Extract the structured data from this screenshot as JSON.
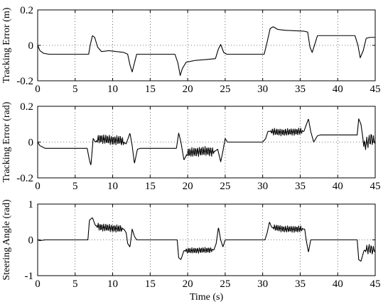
{
  "xlabel": "Time (s)",
  "line_color": "#000000",
  "chart_data": [
    {
      "type": "line",
      "ylabel": "Tracking Error (m)",
      "xlim": [
        0,
        45
      ],
      "ylim": [
        -0.2,
        0.2
      ],
      "xticks": [
        0,
        5,
        10,
        15,
        20,
        25,
        30,
        35,
        40,
        45
      ],
      "yticks": [
        -0.2,
        0,
        0.2
      ],
      "ytick_labels": [
        "-0.2",
        "0",
        "0.2"
      ],
      "grid": true,
      "keypoints": [
        [
          0,
          0
        ],
        [
          0.3,
          -0.03
        ],
        [
          0.8,
          -0.045
        ],
        [
          1.5,
          -0.05
        ],
        [
          6.8,
          -0.05
        ],
        [
          7.0,
          0.0
        ],
        [
          7.3,
          0.055
        ],
        [
          7.6,
          0.045
        ],
        [
          8.0,
          -0.01
        ],
        [
          8.5,
          -0.035
        ],
        [
          9.5,
          -0.03
        ],
        [
          10.5,
          -0.035
        ],
        [
          11.5,
          -0.04
        ],
        [
          12.0,
          -0.05
        ],
        [
          12.3,
          -0.11
        ],
        [
          12.6,
          -0.15
        ],
        [
          12.9,
          -0.1
        ],
        [
          13.2,
          -0.05
        ],
        [
          18.3,
          -0.05
        ],
        [
          18.7,
          -0.1
        ],
        [
          19.0,
          -0.17
        ],
        [
          19.3,
          -0.13
        ],
        [
          19.8,
          -0.095
        ],
        [
          21.0,
          -0.085
        ],
        [
          22.5,
          -0.08
        ],
        [
          23.7,
          -0.075
        ],
        [
          24.1,
          -0.02
        ],
        [
          24.4,
          0.005
        ],
        [
          24.8,
          -0.04
        ],
        [
          25.2,
          -0.05
        ],
        [
          30.2,
          -0.05
        ],
        [
          30.6,
          0.02
        ],
        [
          31.0,
          0.095
        ],
        [
          31.4,
          0.105
        ],
        [
          32.0,
          0.09
        ],
        [
          33.0,
          0.085
        ],
        [
          35.5,
          0.08
        ],
        [
          36.0,
          0.075
        ],
        [
          36.3,
          -0.01
        ],
        [
          36.6,
          -0.04
        ],
        [
          36.9,
          0.0
        ],
        [
          37.3,
          0.055
        ],
        [
          42.3,
          0.055
        ],
        [
          42.7,
          0.0
        ],
        [
          43.0,
          -0.07
        ],
        [
          43.4,
          -0.03
        ],
        [
          43.8,
          0.04
        ],
        [
          44.3,
          0.045
        ],
        [
          45,
          0.045
        ]
      ]
    },
    {
      "type": "line",
      "ylabel": "Tracking Error (rad)",
      "xlim": [
        0,
        45
      ],
      "ylim": [
        -0.2,
        0.2
      ],
      "xticks": [
        0,
        5,
        10,
        15,
        20,
        25,
        30,
        35,
        40,
        45
      ],
      "yticks": [
        -0.2,
        0,
        0.2
      ],
      "ytick_labels": [
        "-0.2",
        "0",
        "0.2"
      ],
      "grid": true,
      "keypoints": [
        [
          0,
          0
        ],
        [
          0.3,
          -0.02
        ],
        [
          1.0,
          -0.035
        ],
        [
          6.6,
          -0.035
        ],
        [
          6.9,
          -0.1
        ],
        [
          7.1,
          -0.13
        ],
        [
          7.4,
          0.02
        ],
        [
          7.7,
          0.0
        ],
        [
          8.2,
          0.02
        ],
        [
          9.0,
          0.015
        ],
        [
          10.0,
          0.01
        ],
        [
          11.0,
          0.01
        ],
        [
          11.8,
          -0.01
        ],
        [
          12.3,
          0.05
        ],
        [
          12.6,
          -0.02
        ],
        [
          12.9,
          -0.12
        ],
        [
          13.3,
          -0.04
        ],
        [
          13.7,
          -0.035
        ],
        [
          18.5,
          -0.035
        ],
        [
          18.8,
          0.05
        ],
        [
          19.1,
          0.0
        ],
        [
          19.5,
          -0.1
        ],
        [
          20.0,
          -0.06
        ],
        [
          21.0,
          -0.055
        ],
        [
          22.5,
          -0.05
        ],
        [
          23.5,
          -0.055
        ],
        [
          24.0,
          -0.04
        ],
        [
          24.4,
          -0.11
        ],
        [
          24.7,
          -0.05
        ],
        [
          25.0,
          0.02
        ],
        [
          25.3,
          0.0
        ],
        [
          30.0,
          0.0
        ],
        [
          30.4,
          0.02
        ],
        [
          30.7,
          0.06
        ],
        [
          31.0,
          0.06
        ],
        [
          32.0,
          0.055
        ],
        [
          33.0,
          0.055
        ],
        [
          35.5,
          0.06
        ],
        [
          36.1,
          0.13
        ],
        [
          36.4,
          0.06
        ],
        [
          36.8,
          0.0
        ],
        [
          37.3,
          0.035
        ],
        [
          37.7,
          0.04
        ],
        [
          42.6,
          0.04
        ],
        [
          42.8,
          0.13
        ],
        [
          43.1,
          0.1
        ],
        [
          43.5,
          -0.02
        ],
        [
          44.0,
          0.0
        ],
        [
          44.5,
          0.02
        ],
        [
          45,
          0.0
        ]
      ],
      "noise": [
        {
          "x0": 7.8,
          "x1": 11.6,
          "amp": 0.02,
          "period": 0.25
        },
        {
          "x0": 19.8,
          "x1": 23.6,
          "amp": 0.02,
          "period": 0.25
        },
        {
          "x0": 31.0,
          "x1": 35.4,
          "amp": 0.015,
          "period": 0.25
        },
        {
          "x0": 43.3,
          "x1": 45.0,
          "amp": 0.025,
          "period": 0.3
        }
      ]
    },
    {
      "type": "line",
      "ylabel": "Steering Angle (rad)",
      "xlim": [
        0,
        45
      ],
      "ylim": [
        -1,
        1
      ],
      "xticks": [
        0,
        5,
        10,
        15,
        20,
        25,
        30,
        35,
        40,
        45
      ],
      "yticks": [
        -1,
        0,
        1
      ],
      "ytick_labels": [
        "-1",
        "0",
        "1"
      ],
      "grid": true,
      "keypoints": [
        [
          0,
          0
        ],
        [
          0.3,
          -0.02
        ],
        [
          1.0,
          0.0
        ],
        [
          6.7,
          0.0
        ],
        [
          6.9,
          0.55
        ],
        [
          7.3,
          0.62
        ],
        [
          7.7,
          0.4
        ],
        [
          8.5,
          0.35
        ],
        [
          11.5,
          0.3
        ],
        [
          11.8,
          0.2
        ],
        [
          12.0,
          -0.1
        ],
        [
          12.3,
          -0.2
        ],
        [
          12.6,
          0.3
        ],
        [
          12.9,
          0.1
        ],
        [
          13.2,
          0.0
        ],
        [
          18.6,
          0.0
        ],
        [
          18.8,
          -0.5
        ],
        [
          19.1,
          -0.55
        ],
        [
          19.5,
          -0.3
        ],
        [
          20.5,
          -0.3
        ],
        [
          23.5,
          -0.28
        ],
        [
          23.8,
          -0.1
        ],
        [
          24.1,
          0.35
        ],
        [
          24.4,
          0.0
        ],
        [
          24.7,
          -0.2
        ],
        [
          25.0,
          0.0
        ],
        [
          30.3,
          0.0
        ],
        [
          30.6,
          0.2
        ],
        [
          30.9,
          0.5
        ],
        [
          31.2,
          0.35
        ],
        [
          33.0,
          0.3
        ],
        [
          35.6,
          0.3
        ],
        [
          35.8,
          0.0
        ],
        [
          36.1,
          -0.35
        ],
        [
          36.4,
          0.0
        ],
        [
          36.8,
          0.0
        ],
        [
          42.6,
          0.0
        ],
        [
          42.8,
          -0.55
        ],
        [
          43.1,
          -0.6
        ],
        [
          43.5,
          -0.3
        ],
        [
          44.2,
          -0.25
        ],
        [
          45,
          -0.3
        ]
      ],
      "noise": [
        {
          "x0": 7.8,
          "x1": 11.4,
          "amp": 0.08,
          "period": 0.25
        },
        {
          "x0": 19.6,
          "x1": 23.4,
          "amp": 0.06,
          "period": 0.25
        },
        {
          "x0": 31.3,
          "x1": 35.4,
          "amp": 0.07,
          "period": 0.25
        },
        {
          "x0": 43.6,
          "x1": 45.0,
          "amp": 0.1,
          "period": 0.3
        }
      ]
    }
  ]
}
